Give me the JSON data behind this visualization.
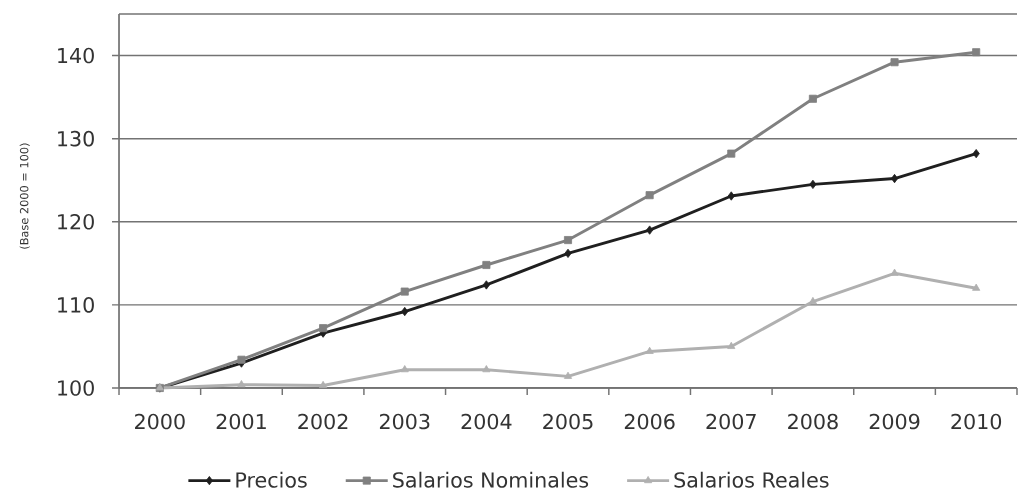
{
  "chart_data": {
    "type": "line",
    "ylabel": "(Base 2000 = 100)",
    "categories": [
      "2000",
      "2001",
      "2002",
      "2003",
      "2004",
      "2005",
      "2006",
      "2007",
      "2008",
      "2009",
      "2010"
    ],
    "ylim": [
      100,
      145
    ],
    "yticks": [
      100,
      110,
      120,
      130,
      140
    ],
    "grid": "y",
    "legend": "bottom",
    "line_style": "solid",
    "series": [
      {
        "name": "Precios",
        "color": "#1f1f1f",
        "marker": "diamond",
        "values": [
          100,
          103.0,
          106.6,
          109.2,
          112.4,
          116.2,
          119.0,
          123.1,
          124.5,
          125.2,
          128.2
        ]
      },
      {
        "name": "Salarios Nominales",
        "color": "#808080",
        "marker": "square",
        "values": [
          100,
          103.4,
          107.2,
          111.6,
          114.8,
          117.8,
          123.2,
          128.2,
          134.8,
          139.2,
          140.4
        ]
      },
      {
        "name": "Salarios Reales",
        "color": "#b0b0b0",
        "marker": "triangle",
        "values": [
          100,
          100.4,
          100.3,
          102.2,
          102.2,
          101.4,
          104.4,
          105.0,
          110.4,
          113.8,
          112.0
        ]
      }
    ]
  }
}
